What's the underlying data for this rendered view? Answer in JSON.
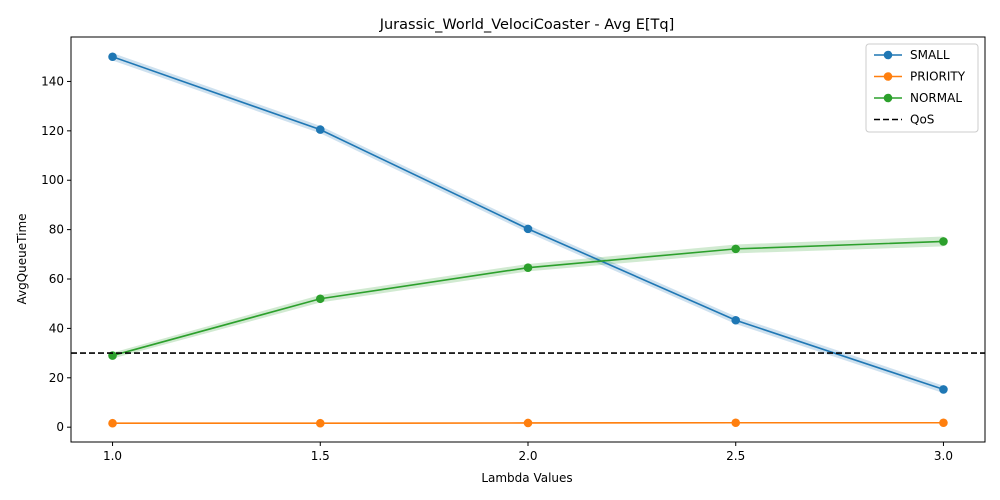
{
  "chart_data": {
    "type": "line",
    "title": "Jurassic_World_VelociCoaster - Avg E[Tq]",
    "xlabel": "Lambda Values",
    "ylabel": "AvgQueueTime",
    "x": [
      1.0,
      1.5,
      2.0,
      2.5,
      3.0
    ],
    "x_tick_labels": [
      "1.0",
      "1.5",
      "2.0",
      "2.5",
      "3.0"
    ],
    "y_ticks": [
      0,
      20,
      40,
      60,
      80,
      100,
      120,
      140
    ],
    "y_tick_labels": [
      "0",
      "20",
      "40",
      "60",
      "80",
      "100",
      "120",
      "140"
    ],
    "xlim": [
      0.9,
      3.1
    ],
    "ylim": [
      -6,
      158
    ],
    "grid": false,
    "legend_position": "top-right",
    "series": [
      {
        "name": "SMALL",
        "color": "#1f77b4",
        "values": [
          150,
          120.5,
          80.3,
          43.3,
          15.3
        ],
        "band": [
          1.5,
          1.5,
          1.5,
          1.5,
          1.5
        ]
      },
      {
        "name": "PRIORITY",
        "color": "#ff7f0e",
        "values": [
          1.6,
          1.6,
          1.7,
          1.8,
          1.8
        ],
        "band": [
          0.3,
          0.3,
          0.3,
          0.3,
          0.3
        ]
      },
      {
        "name": "NORMAL",
        "color": "#2ca02c",
        "values": [
          29,
          52,
          64.6,
          72.2,
          75.2
        ],
        "band": [
          1.2,
          1.5,
          1.5,
          1.8,
          2.0
        ]
      }
    ],
    "reference_lines": [
      {
        "name": "QoS",
        "y": 30,
        "color": "#000000",
        "style": "dashed"
      }
    ]
  }
}
